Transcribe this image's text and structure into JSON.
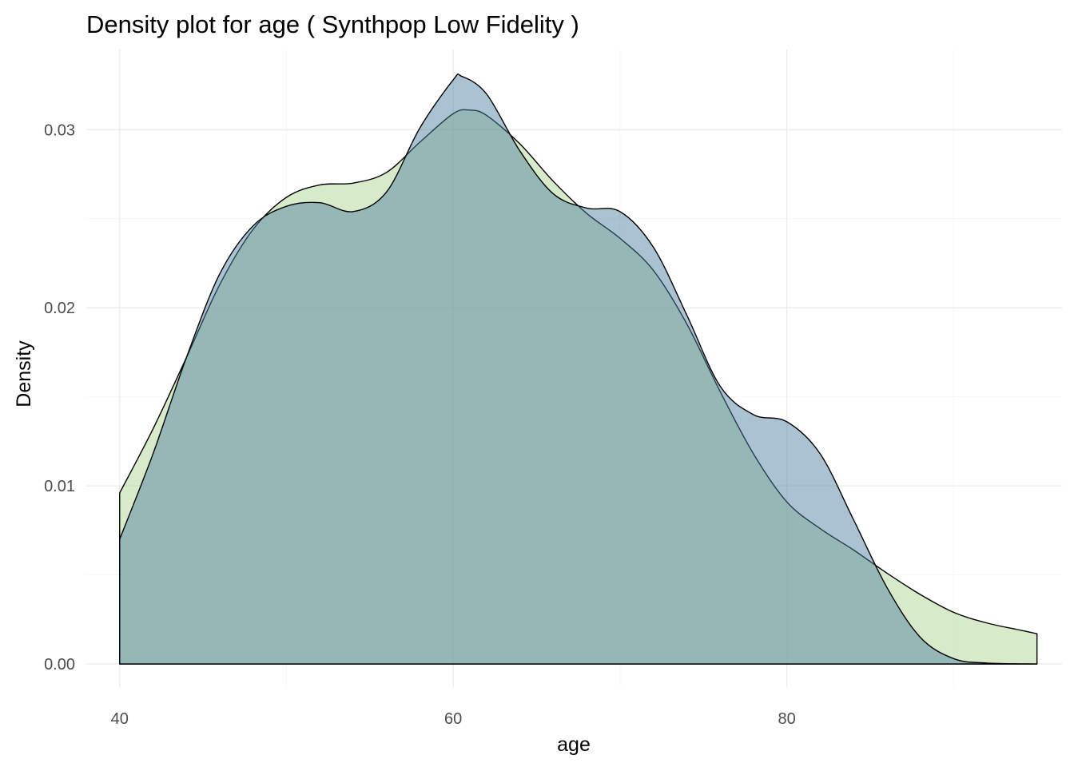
{
  "chart_data": {
    "type": "area",
    "title": "Density plot for age ( Synthpop Low Fidelity )",
    "xlabel": "age",
    "ylabel": "Density",
    "xlim": [
      38,
      96.5
    ],
    "ylim": [
      -0.0013,
      0.0345
    ],
    "x_ticks": [
      40,
      60,
      80
    ],
    "x_tick_labels": [
      "40",
      "60",
      "80"
    ],
    "y_ticks": [
      0,
      0.01,
      0.02,
      0.03
    ],
    "y_tick_labels": [
      "0.00",
      "0.01",
      "0.02",
      "0.03"
    ],
    "grid": true,
    "legend": "none",
    "series": [
      {
        "color": "#b7dba0",
        "opacity": 0.55,
        "points": [
          [
            40,
            0.0096
          ],
          [
            42,
            0.0132
          ],
          [
            44,
            0.0172
          ],
          [
            46,
            0.0213
          ],
          [
            48,
            0.0244
          ],
          [
            50,
            0.0262
          ],
          [
            52,
            0.0269
          ],
          [
            54,
            0.027
          ],
          [
            56,
            0.0276
          ],
          [
            58,
            0.0293
          ],
          [
            60,
            0.0309
          ],
          [
            61,
            0.0311
          ],
          [
            62,
            0.0308
          ],
          [
            64,
            0.0292
          ],
          [
            66,
            0.0271
          ],
          [
            68,
            0.0253
          ],
          [
            70,
            0.0239
          ],
          [
            72,
            0.0221
          ],
          [
            74,
            0.0191
          ],
          [
            76,
            0.0153
          ],
          [
            78,
            0.0118
          ],
          [
            80,
            0.0091
          ],
          [
            82,
            0.0076
          ],
          [
            84,
            0.0064
          ],
          [
            86,
            0.0051
          ],
          [
            88,
            0.0039
          ],
          [
            90,
            0.0029
          ],
          [
            92,
            0.0023
          ],
          [
            94,
            0.0019
          ],
          [
            95,
            0.0017
          ]
        ]
      },
      {
        "color": "#4d7fa0",
        "opacity": 0.48,
        "points": [
          [
            40,
            0.007
          ],
          [
            42,
            0.0118
          ],
          [
            44,
            0.0172
          ],
          [
            46,
            0.0219
          ],
          [
            48,
            0.0246
          ],
          [
            50,
            0.0257
          ],
          [
            52,
            0.0259
          ],
          [
            54,
            0.0254
          ],
          [
            56,
            0.0265
          ],
          [
            58,
            0.0301
          ],
          [
            60,
            0.0328
          ],
          [
            60.5,
            0.033
          ],
          [
            62,
            0.032
          ],
          [
            64,
            0.0288
          ],
          [
            66,
            0.0264
          ],
          [
            68,
            0.0256
          ],
          [
            70,
            0.0254
          ],
          [
            72,
            0.0234
          ],
          [
            74,
            0.0196
          ],
          [
            76,
            0.0156
          ],
          [
            78,
            0.014
          ],
          [
            80,
            0.0136
          ],
          [
            82,
            0.0118
          ],
          [
            84,
            0.0081
          ],
          [
            86,
            0.0043
          ],
          [
            88,
            0.0015
          ],
          [
            90,
            0.0003
          ],
          [
            92,
            5e-05
          ],
          [
            95,
            0
          ]
        ]
      }
    ]
  }
}
